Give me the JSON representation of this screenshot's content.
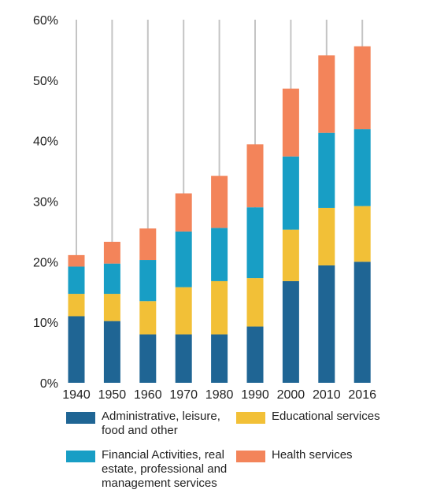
{
  "chart_data": {
    "type": "bar",
    "stacked": true,
    "categories": [
      "1940",
      "1950",
      "1960",
      "1970",
      "1980",
      "1990",
      "2000",
      "2010",
      "2016"
    ],
    "series": [
      {
        "name": "Administrative, leisure,\nfood and other",
        "color": "#1f6594",
        "values": [
          11,
          10.2,
          8,
          8,
          8,
          9.3,
          16.8,
          19.4,
          20
        ]
      },
      {
        "name": "Educational services",
        "color": "#f2c037",
        "values": [
          3.7,
          4.5,
          5.5,
          7.8,
          8.8,
          8,
          8.5,
          9.5,
          9.2
        ]
      },
      {
        "name": "Financial Activities, real\nestate, professional and\nmanagement services",
        "color": "#189ec5",
        "values": [
          4.5,
          5,
          6.8,
          9.2,
          8.8,
          11.7,
          12.1,
          12.4,
          12.7
        ]
      },
      {
        "name": "Health services",
        "color": "#f3845a",
        "values": [
          1.9,
          3.6,
          5.2,
          6.3,
          8.6,
          10.4,
          11.2,
          12.8,
          13.7
        ]
      }
    ],
    "yticks": [
      "0%",
      "10%",
      "20%",
      "30%",
      "40%",
      "50%",
      "60%"
    ],
    "ylim": [
      0,
      60
    ],
    "grid": false,
    "legend_position": "bottom"
  }
}
